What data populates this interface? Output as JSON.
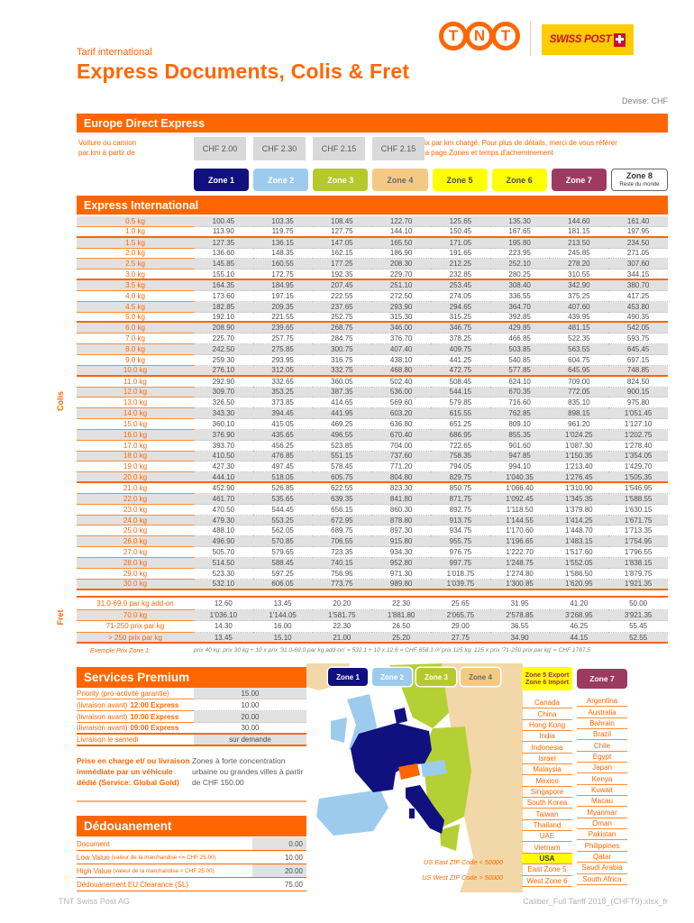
{
  "page": {
    "title_small": "Tarif international",
    "title_large": "Express Documents, Colis & Fret",
    "currency_label": "Devise: CHF",
    "footer_left": "TNT Swiss Post AG",
    "footer_right": "Caliber_Full Tariff 2018_(CHFT9).xlsx_fr"
  },
  "logos": {
    "tnt_letters": [
      "T",
      "N",
      "T"
    ],
    "swisspost_text": "SWISS POST"
  },
  "colors": {
    "accent_orange": "#FF6600",
    "zone5_yellow": "#FFFF00",
    "row_gray": "#E1E1E1"
  },
  "europe_direct": {
    "title": "Europe Direct Express",
    "left_label_line1": "Voiture ou camion",
    "left_label_line2": "par km à partir de",
    "prices": [
      "CHF 2.00",
      "CHF 2.30",
      "CHF 2.15",
      "CHF 2.15"
    ],
    "note_line1": "Prix par km chargé. Pour plus de détails, merci de vous référer",
    "note_line2": "à la page Zones et temps d'acheminement"
  },
  "zones": [
    {
      "label": "Zone 1",
      "bg": "#10107E",
      "fg": "#FFFFFF"
    },
    {
      "label": "Zone 2",
      "bg": "#9DCBEE",
      "fg": "#FFFFFF"
    },
    {
      "label": "Zone 3",
      "bg": "#B5C92C",
      "fg": "#FFFFFF",
      "dotted": true
    },
    {
      "label": "Zone 4",
      "bg": "#F4C983",
      "fg": "#6B6B6B"
    },
    {
      "label": "Zone 5",
      "bg": "#FFFF00",
      "fg": "#4D4D4D"
    },
    {
      "label": "Zone 6",
      "bg": "#FFFF00",
      "fg": "#4D4D4D"
    },
    {
      "label": "Zone 7",
      "bg": "#9C3A60",
      "fg": "#FFFFFF"
    },
    {
      "label": "Zone 8",
      "sub": "Reste du monde",
      "bg": "#FFFFFF",
      "fg": "#333333",
      "border": "#666666"
    }
  ],
  "express_international": {
    "title": "Express International",
    "colis_label": "Colis",
    "fret_label": "Fret",
    "separators_after": [
      "1.0 kg",
      "3.0 kg",
      "5.0 kg",
      "10.0 kg",
      "20.0 kg",
      "30.0 kg"
    ],
    "rows": [
      {
        "w": "0.5 kg",
        "v": [
          "100.45",
          "103.35",
          "108.45",
          "122.70",
          "125.65",
          "135.30",
          "144.60",
          "161.40"
        ]
      },
      {
        "w": "1.0 kg",
        "v": [
          "113.90",
          "119.75",
          "127.75",
          "144.10",
          "150.45",
          "167.65",
          "181.15",
          "197.95"
        ]
      },
      {
        "w": "1.5 kg",
        "v": [
          "127.35",
          "136.15",
          "147.05",
          "165.50",
          "171.05",
          "195.80",
          "213.50",
          "234.50"
        ]
      },
      {
        "w": "2.0 kg",
        "v": [
          "136.60",
          "148.35",
          "162.15",
          "186.90",
          "191.65",
          "223.95",
          "245.85",
          "271.05"
        ]
      },
      {
        "w": "2.5 kg",
        "v": [
          "145.85",
          "160.55",
          "177.25",
          "208.30",
          "212.25",
          "252.10",
          "278.20",
          "307.60"
        ]
      },
      {
        "w": "3.0 kg",
        "v": [
          "155.10",
          "172.75",
          "192.35",
          "229.70",
          "232.85",
          "280.25",
          "310.55",
          "344.15"
        ]
      },
      {
        "w": "3.5 kg",
        "v": [
          "164.35",
          "184.95",
          "207.45",
          "251.10",
          "253.45",
          "308.40",
          "342.90",
          "380.70"
        ]
      },
      {
        "w": "4.0 kg",
        "v": [
          "173.60",
          "197.15",
          "222.55",
          "272.50",
          "274.05",
          "336.55",
          "375.25",
          "417.25"
        ]
      },
      {
        "w": "4.5 kg",
        "v": [
          "182.85",
          "209.35",
          "237.65",
          "293.90",
          "294.65",
          "364.70",
          "407.60",
          "453.80"
        ]
      },
      {
        "w": "5.0 kg",
        "v": [
          "192.10",
          "221.55",
          "252.75",
          "315.30",
          "315.25",
          "392.85",
          "439.95",
          "490.35"
        ]
      },
      {
        "w": "6.0 kg",
        "v": [
          "208.90",
          "239.65",
          "268.75",
          "346.00",
          "346.75",
          "429.85",
          "481.15",
          "542.05"
        ]
      },
      {
        "w": "7.0 kg",
        "v": [
          "225.70",
          "257.75",
          "284.75",
          "376.70",
          "378.25",
          "466.85",
          "522.35",
          "593.75"
        ]
      },
      {
        "w": "8.0 kg",
        "v": [
          "242.50",
          "275.85",
          "300.75",
          "407.40",
          "409.75",
          "503.85",
          "563.55",
          "645.45"
        ]
      },
      {
        "w": "9.0 kg",
        "v": [
          "259.30",
          "293.95",
          "316.75",
          "438.10",
          "441.25",
          "540.85",
          "604.75",
          "697.15"
        ]
      },
      {
        "w": "10.0 kg",
        "v": [
          "276.10",
          "312.05",
          "332.75",
          "468.80",
          "472.75",
          "577.85",
          "645.95",
          "748.85"
        ]
      },
      {
        "w": "11.0 kg",
        "v": [
          "292.90",
          "332.65",
          "360.05",
          "502.40",
          "508.45",
          "624.10",
          "709.00",
          "824.50"
        ]
      },
      {
        "w": "12.0 kg",
        "v": [
          "309.70",
          "353.25",
          "387.35",
          "536.00",
          "544.15",
          "670.35",
          "772.05",
          "900.15"
        ]
      },
      {
        "w": "13.0 kg",
        "v": [
          "326.50",
          "373.85",
          "414.65",
          "569.60",
          "579.85",
          "716.60",
          "835.10",
          "975.80"
        ]
      },
      {
        "w": "14.0 kg",
        "v": [
          "343.30",
          "394.45",
          "441.95",
          "603.20",
          "615.55",
          "762.85",
          "898.15",
          "1'051.45"
        ]
      },
      {
        "w": "15.0 kg",
        "v": [
          "360.10",
          "415.05",
          "469.25",
          "636.80",
          "651.25",
          "809.10",
          "961.20",
          "1'127.10"
        ]
      },
      {
        "w": "16.0 kg",
        "v": [
          "376.90",
          "435.65",
          "496.55",
          "670.40",
          "686.95",
          "855.35",
          "1'024.25",
          "1'202.75"
        ]
      },
      {
        "w": "17.0 kg",
        "v": [
          "393.70",
          "456.25",
          "523.85",
          "704.00",
          "722.65",
          "901.60",
          "1'087.30",
          "1'278.40"
        ]
      },
      {
        "w": "18.0 kg",
        "v": [
          "410.50",
          "476.85",
          "551.15",
          "737.60",
          "758.35",
          "947.85",
          "1'150.35",
          "1'354.05"
        ]
      },
      {
        "w": "19.0 kg",
        "v": [
          "427.30",
          "497.45",
          "578.45",
          "771.20",
          "794.05",
          "994.10",
          "1'213.40",
          "1'429.70"
        ]
      },
      {
        "w": "20.0 kg",
        "v": [
          "444.10",
          "518.05",
          "605.75",
          "804.80",
          "829.75",
          "1'040.35",
          "1'276.45",
          "1'505.35"
        ]
      },
      {
        "w": "21.0 kg",
        "v": [
          "452.90",
          "526.85",
          "622.55",
          "823.30",
          "850.75",
          "1'066.40",
          "1'310.90",
          "1'546.95"
        ]
      },
      {
        "w": "22.0 kg",
        "v": [
          "461.70",
          "535.65",
          "639.35",
          "841.80",
          "871.75",
          "1'092.45",
          "1'345.35",
          "1'588.55"
        ]
      },
      {
        "w": "23.0 kg",
        "v": [
          "470.50",
          "544.45",
          "656.15",
          "860.30",
          "892.75",
          "1'118.50",
          "1'379.80",
          "1'630.15"
        ]
      },
      {
        "w": "24.0 kg",
        "v": [
          "479.30",
          "553.25",
          "672.95",
          "878.80",
          "913.75",
          "1'144.55",
          "1'414.25",
          "1'671.75"
        ]
      },
      {
        "w": "25.0 kg",
        "v": [
          "488.10",
          "562.05",
          "689.75",
          "897.30",
          "934.75",
          "1'170.60",
          "1'448.70",
          "1'713.35"
        ]
      },
      {
        "w": "26.0 kg",
        "v": [
          "496.90",
          "570.85",
          "706.55",
          "915.80",
          "955.75",
          "1'196.65",
          "1'483.15",
          "1'754.95"
        ]
      },
      {
        "w": "27.0 kg",
        "v": [
          "505.70",
          "579.65",
          "723.35",
          "934.30",
          "976.75",
          "1'222.70",
          "1'517.60",
          "1'796.55"
        ]
      },
      {
        "w": "28.0 kg",
        "v": [
          "514.50",
          "588.45",
          "740.15",
          "952.80",
          "997.75",
          "1'248.75",
          "1'552.05",
          "1'838.15"
        ]
      },
      {
        "w": "29.0 kg",
        "v": [
          "523.30",
          "597.25",
          "756.95",
          "971.30",
          "1'018.75",
          "1'274.80",
          "1'586.50",
          "1'879.75"
        ]
      },
      {
        "w": "30.0 kg",
        "v": [
          "532.10",
          "606.05",
          "773.75",
          "989.80",
          "1'039.75",
          "1'300.85",
          "1'620.95",
          "1'921.35"
        ]
      }
    ],
    "fret_rows": [
      {
        "w": "31.0-69.0 par kg add-on",
        "v": [
          "12.60",
          "13.45",
          "20.20",
          "22.30",
          "25.65",
          "31.95",
          "41.20",
          "50.00"
        ]
      },
      {
        "w": "70.0 kg",
        "v": [
          "1'036.10",
          "1'144.05",
          "1'581.75",
          "1'881.80",
          "2'065.75",
          "2'578.85",
          "3'268.95",
          "3'921.35"
        ]
      },
      {
        "w": "71-250 prix par kg",
        "v": [
          "14.30",
          "16.00",
          "22.30",
          "26.50",
          "29.00",
          "36.55",
          "46.25",
          "55.45"
        ]
      },
      {
        "w": "> 250 prix par kg",
        "v": [
          "13.45",
          "15.10",
          "21.00",
          "25.20",
          "27.75",
          "34.90",
          "44.15",
          "52.55"
        ]
      }
    ],
    "example_label": "Exemple Prix Zone 1:",
    "example_text": "prix 40 kg: prix 30 kg + 10 x prix '31.0-69.0 par kg add-on' = 532.1 + 10 x 12.6 = CHF 658.1 /// prix 125 kg: 125 x prix '71-250 prix par kg' = CHF 1787.5"
  },
  "services_premium": {
    "title": "Services Premium",
    "rows": [
      {
        "label_plain": "Priority (pro-activité garantie)",
        "label_bold": "",
        "value": "15.00"
      },
      {
        "label_plain": "(livraison avant)",
        "label_bold": "12:00 Express",
        "value": "10.00"
      },
      {
        "label_plain": "(livraison avant)",
        "label_bold": "10:00 Express",
        "value": "20.00"
      },
      {
        "label_plain": "(livraison avant)",
        "label_bold": "09:00 Express",
        "value": "30.00"
      },
      {
        "label_plain": "Livraison le samedi",
        "label_bold": "",
        "value": "sur demande"
      }
    ],
    "note_title": "Prise en charge et/ ou livraison immédiate par un véhicule dédié (Service: Global Gold)",
    "note_text": "Zones à forte concentration urbaine ou grandes villes à partir de CHF 150.00"
  },
  "dedouanement": {
    "title": "Dédouanement",
    "rows": [
      {
        "label": "Document",
        "label_small": "",
        "value": "0.00"
      },
      {
        "label": "Low Value",
        "label_small": "(valeur de la marchandise <= CHF 25.00)",
        "value": "10.00"
      },
      {
        "label": "High Value",
        "label_small": "(valeur de la marchandise > CHF 25.00)",
        "value": "20.00"
      },
      {
        "label": "Dédouanement EU Clearance (SL)",
        "label_small": "",
        "value": "75.00"
      }
    ]
  },
  "map": {
    "zone_buttons": [
      "Zone 1",
      "Zone 2",
      "Zone 3",
      "Zone 4"
    ],
    "us_east_note": "US East ZIP Code < 50000",
    "us_west_note": "US West ZIP Code > 50000"
  },
  "country_columns": {
    "col1_header_line1": "Zone 5 Export",
    "col1_header_line2": "Zone 6 Import",
    "col2_header": "Zone 7",
    "highlight": "USA",
    "col1": [
      "Canada",
      "China",
      "Hong Kong",
      "India",
      "Indonesia",
      "Israel",
      "Malaysia",
      "Mexico",
      "Singapore",
      "South Korea",
      "Taiwan",
      "Thailand",
      "UAE",
      "Vietnam",
      "USA",
      "East Zone 5",
      "West Zone 6"
    ],
    "col2": [
      "Argentina",
      "Australia",
      "Bahrain",
      "Brazil",
      "Chile",
      "Egypt",
      "Japan",
      "Kenya",
      "Kuwait",
      "Macau",
      "Myanmar",
      "Oman",
      "Pakistan",
      "Philippines",
      "Qatar",
      "Saudi Arabia",
      "South Africa"
    ]
  }
}
